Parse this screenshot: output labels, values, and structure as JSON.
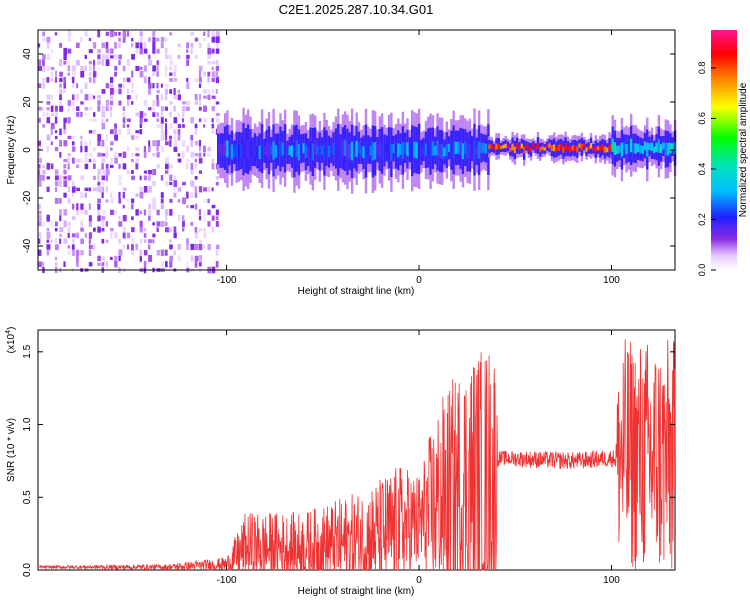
{
  "title": "C2E1.2025.287.10.34.G01",
  "colors": {
    "snr_line": "#ee3333",
    "spectro_background": "#ffffff",
    "axis": "#000000"
  },
  "chart_data": [
    {
      "type": "heatmap",
      "name": "spectrogram",
      "xlabel": "Height of straight line (km)",
      "ylabel": "Frequency (Hz)",
      "xlim": [
        -198,
        133
      ],
      "ylim": [
        -50,
        50
      ],
      "x_ticks": [
        -100,
        0,
        100
      ],
      "y_ticks": [
        -40,
        -20,
        0,
        20,
        40
      ],
      "colorbar": {
        "label": "Normalized spectral amplitude",
        "range": [
          0,
          0.95
        ],
        "ticks": [
          0.0,
          0.2,
          0.4,
          0.6,
          0.8
        ],
        "colormap": "rainbow (white-violet-blue-cyan-green-yellow-red-magenta)"
      },
      "regions": [
        {
          "x_range": [
            -198,
            -105
          ],
          "freq_range": [
            -50,
            50
          ],
          "amplitude": 0.03,
          "description": "broadband noise"
        },
        {
          "x_range": [
            -105,
            36
          ],
          "freq_center": 0,
          "freq_halfwidth": 8,
          "amplitude": 0.25
        },
        {
          "x_range": [
            36,
            100
          ],
          "freq_center": 1,
          "freq_halfwidth": 3,
          "amplitude": 0.85
        },
        {
          "x_range": [
            100,
            133
          ],
          "freq_center": 1,
          "freq_halfwidth": 6,
          "amplitude": 0.35
        }
      ],
      "grid": false
    },
    {
      "type": "line",
      "name": "snr",
      "xlabel": "Height of straight line (km)",
      "ylabel": "SNR (10 * v/v)",
      "y_multiplier_label": "(x10",
      "y_multiplier_exp": "4",
      "xlim": [
        -198,
        133
      ],
      "ylim": [
        0,
        1.65
      ],
      "x_ticks": [
        -100,
        0,
        100
      ],
      "y_ticks": [
        "0.0",
        "0.5",
        "1.0",
        "1.5"
      ],
      "grid": false,
      "envelope": [
        {
          "x": -198,
          "mean": 0.02,
          "spread": 0.01
        },
        {
          "x": -130,
          "mean": 0.02,
          "spread": 0.02
        },
        {
          "x": -100,
          "mean": 0.04,
          "spread": 0.05
        },
        {
          "x": -90,
          "mean": 0.15,
          "spread": 0.25
        },
        {
          "x": -60,
          "mean": 0.15,
          "spread": 0.25
        },
        {
          "x": -30,
          "mean": 0.2,
          "spread": 0.35
        },
        {
          "x": -10,
          "mean": 0.28,
          "spread": 0.45
        },
        {
          "x": 0,
          "mean": 0.32,
          "spread": 0.35
        },
        {
          "x": 10,
          "mean": 0.45,
          "spread": 0.7
        },
        {
          "x": 25,
          "mean": 0.55,
          "spread": 0.95
        },
        {
          "x": 40,
          "mean": 0.6,
          "spread": 1.0
        },
        {
          "x": 41,
          "mean": 0.77,
          "spread": 0.05
        },
        {
          "x": 60,
          "mean": 0.76,
          "spread": 0.06
        },
        {
          "x": 80,
          "mean": 0.75,
          "spread": 0.06
        },
        {
          "x": 102,
          "mean": 0.77,
          "spread": 0.06
        },
        {
          "x": 104,
          "mean": 0.8,
          "spread": 0.8
        },
        {
          "x": 133,
          "mean": 0.75,
          "spread": 0.85
        }
      ]
    }
  ]
}
